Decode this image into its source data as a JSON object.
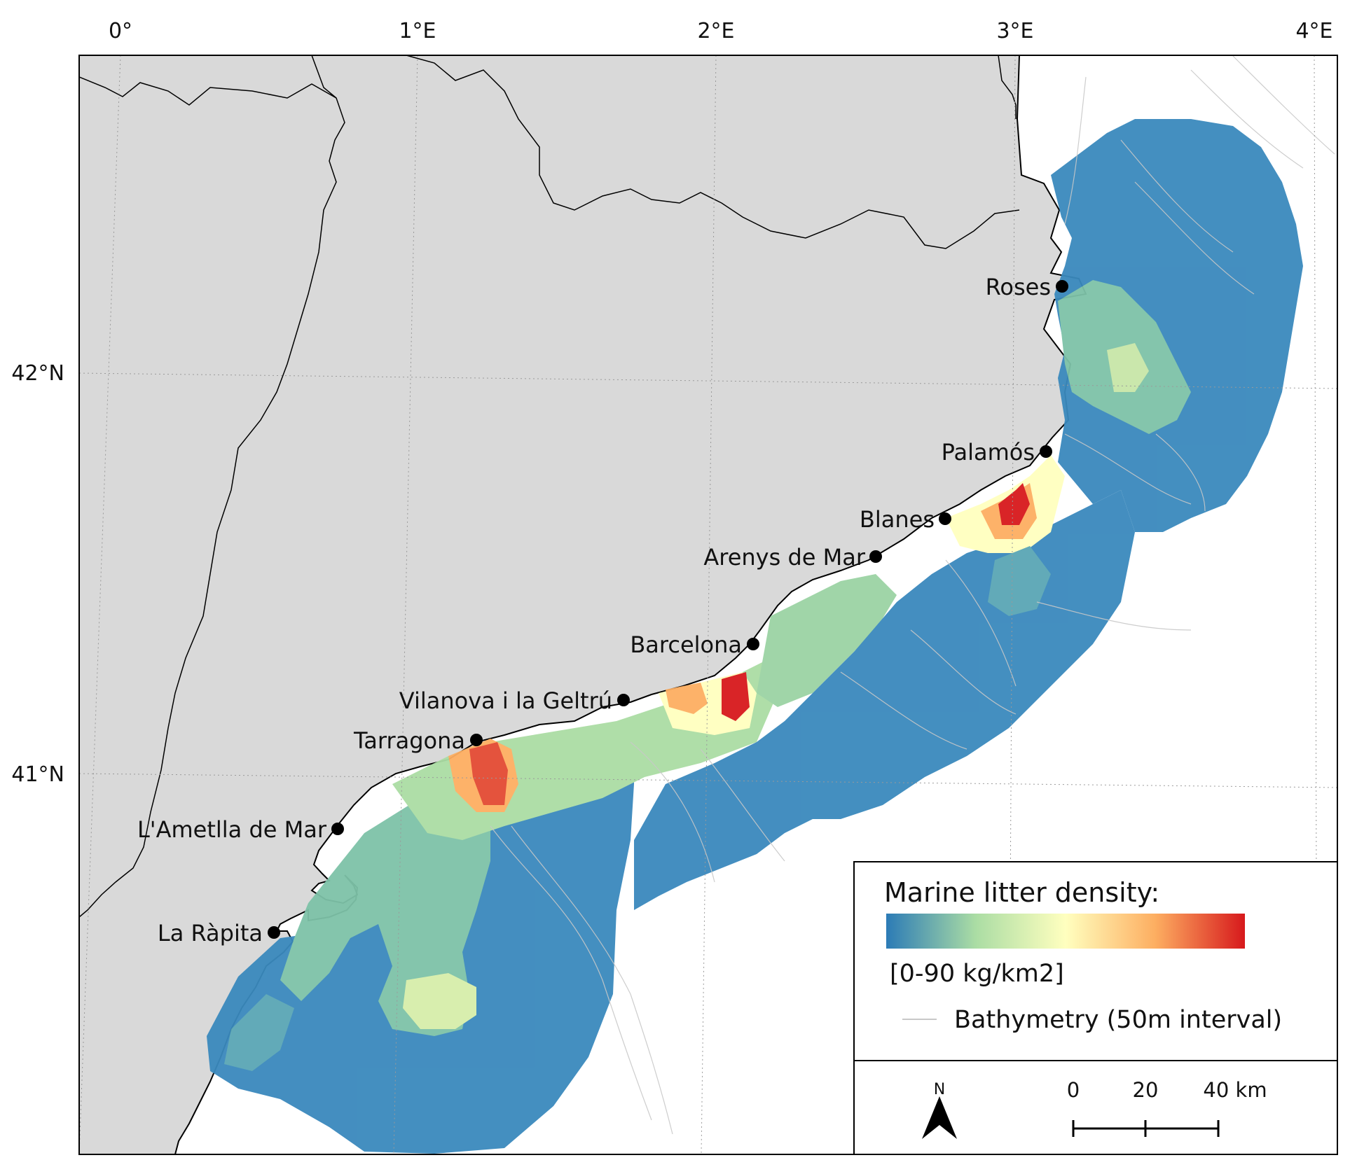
{
  "map": {
    "axis_labels": {
      "longitude": [
        "0°",
        "1°E",
        "2°E",
        "3°E",
        "4°E"
      ],
      "latitude": [
        "42°N",
        "41°N"
      ]
    },
    "cities": [
      {
        "name": "Roses"
      },
      {
        "name": "Palamós"
      },
      {
        "name": "Blanes"
      },
      {
        "name": "Arenys de Mar"
      },
      {
        "name": "Barcelona"
      },
      {
        "name": "Vilanova i la Geltrú"
      },
      {
        "name": "Tarragona"
      },
      {
        "name": "L'Ametlla de Mar"
      },
      {
        "name": "La Ràpita"
      }
    ],
    "colors": {
      "land": "#d9d9d9",
      "sea": "#ffffff",
      "bathymetry": "#c8c8c8",
      "scale": [
        "#2c7bb6",
        "#abdda4",
        "#ffffbf",
        "#fdae61",
        "#d7191c"
      ]
    }
  },
  "legend": {
    "title": "Marine litter density:",
    "range_label": "[0-90 kg/km2]",
    "bathymetry_label": "Bathymetry (50m interval)",
    "north_label": "N",
    "scale_labels": [
      "0",
      "20",
      "40 km"
    ]
  }
}
